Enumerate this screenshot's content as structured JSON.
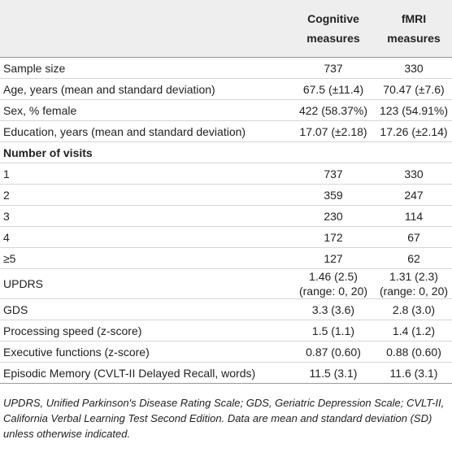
{
  "header": {
    "columns": [
      "Cognitive measures",
      "fMRI measures"
    ]
  },
  "table": {
    "rows": [
      [
        "Sample size",
        "737",
        "330"
      ],
      [
        "Age, years (mean and standard deviation)",
        "67.5 (±11.4)",
        "70.47 (±7.6)"
      ],
      [
        "Sex, % female",
        "422 (58.37%)",
        "123 (54.91%)"
      ],
      [
        "Education, years (mean and standard deviation)",
        "17.07 (±2.18)",
        "17.26 (±2.14)"
      ],
      [
        "Number of visits"
      ],
      [
        "1",
        "737",
        "330"
      ],
      [
        "2",
        "359",
        "247"
      ],
      [
        "3",
        "230",
        "114"
      ],
      [
        "4",
        "172",
        "67"
      ],
      [
        "≥5",
        "127",
        "62"
      ],
      [
        "UPDRS",
        [
          "1.46 (2.5)",
          "(range: 0, 20)"
        ],
        [
          "1.31 (2.3)",
          "(range: 0, 20)"
        ]
      ],
      [
        "GDS",
        "3.3 (3.6)",
        "2.8 (3.0)"
      ],
      [
        "Processing speed (z-score)",
        "1.5 (1.1)",
        "1.4 (1.2)"
      ],
      [
        "Executive functions (z-score)",
        "0.87 (0.60)",
        "0.88 (0.60)"
      ],
      [
        "Episodic Memory (CVLT-II Delayed Recall, words)",
        "11.5 (3.1)",
        "11.6 (3.1)"
      ]
    ]
  },
  "footnote": "UPDRS, Unified Parkinson's Disease Rating Scale; GDS, Geriatric Depression Scale; CVLT-II, California Verbal Learning Test Second Edition. Data are mean and standard deviation (SD) unless otherwise indicated."
}
